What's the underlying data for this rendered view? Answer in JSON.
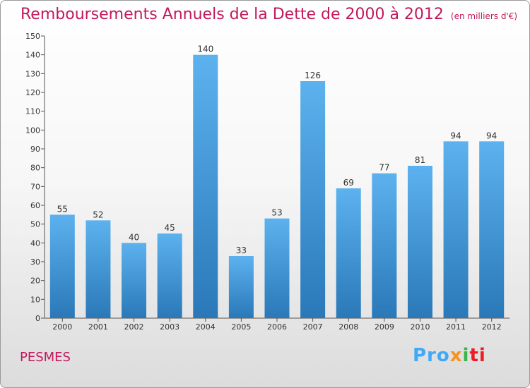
{
  "header": {
    "title": "Remboursements Annuels de la Dette de 2000 à 2012",
    "unit": "(en milliers d'€)"
  },
  "footer": {
    "commune": "PESMES",
    "brand_parts": [
      "Pro",
      "x",
      "i",
      "ti"
    ]
  },
  "colors": {
    "title": "#c2185b",
    "bar_top": "#5cb2ee",
    "bar_bottom": "#2a78b8"
  },
  "chart_data": {
    "type": "bar",
    "title": "Remboursements Annuels de la Dette de 2000 à 2012",
    "subtitle": "(en milliers d'€)",
    "xlabel": "",
    "ylabel": "",
    "categories": [
      "2000",
      "2001",
      "2002",
      "2003",
      "2004",
      "2005",
      "2006",
      "2007",
      "2008",
      "2009",
      "2010",
      "2011",
      "2012"
    ],
    "values": [
      55,
      52,
      40,
      45,
      140,
      33,
      53,
      126,
      69,
      77,
      81,
      94,
      94
    ],
    "ylim": [
      0,
      150
    ],
    "yticks": [
      0,
      10,
      20,
      30,
      40,
      50,
      60,
      70,
      80,
      90,
      100,
      110,
      120,
      130,
      140,
      150
    ],
    "grid": false,
    "legend": "none"
  }
}
